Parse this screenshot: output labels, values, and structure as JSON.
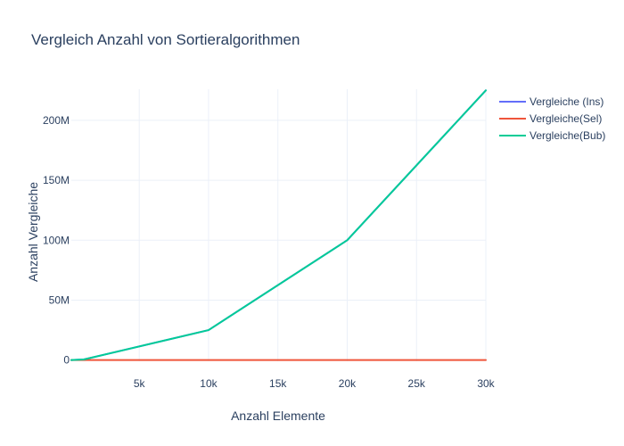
{
  "chart_data": {
    "type": "line",
    "title": "Vergleich Anzahl von Sortieralgorithmen",
    "xlabel": "Anzahl Elemente",
    "ylabel": "Anzahl Vergleiche",
    "x": [
      100,
      1000,
      10000,
      20000,
      30000
    ],
    "xlim": [
      100,
      30000
    ],
    "ylim": [
      -1000000,
      226000000
    ],
    "x_ticks": [
      {
        "value": 5000,
        "label": "5k"
      },
      {
        "value": 10000,
        "label": "10k"
      },
      {
        "value": 15000,
        "label": "15k"
      },
      {
        "value": 20000,
        "label": "20k"
      },
      {
        "value": 25000,
        "label": "25k"
      },
      {
        "value": 30000,
        "label": "30k"
      }
    ],
    "y_ticks": [
      {
        "value": 0,
        "label": "0"
      },
      {
        "value": 50000000,
        "label": "50M"
      },
      {
        "value": 100000000,
        "label": "100M"
      },
      {
        "value": 150000000,
        "label": "150M"
      },
      {
        "value": 200000000,
        "label": "200M"
      }
    ],
    "grid": true,
    "legend_position": "top-right",
    "series": [
      {
        "name": "Vergleiche (Ins)",
        "color": "#636efa",
        "values": [
          4950,
          499500,
          24995000,
          99990000,
          224985000
        ]
      },
      {
        "name": "Vergleiche(Sel)",
        "color": "#ef553b",
        "values": [
          99,
          999,
          9999,
          19999,
          29999
        ]
      },
      {
        "name": "Vergleiche(Bub)",
        "color": "#00cc96",
        "values": [
          4950,
          499500,
          24995000,
          99990000,
          224985000
        ]
      }
    ]
  }
}
